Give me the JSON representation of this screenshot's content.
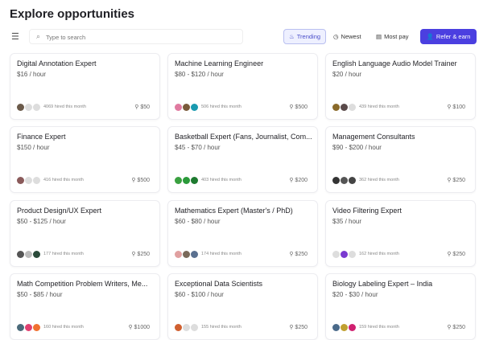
{
  "header": {
    "title": "Explore opportunities"
  },
  "toolbar": {
    "search_placeholder": "Type to search",
    "trending": "Trending",
    "newest": "Newest",
    "most_pay": "Most pay",
    "refer": "Refer & earn",
    "accent": "#4b3fe0"
  },
  "cards": [
    {
      "title": "Digital Annotation Expert",
      "price": "$16 / hour",
      "hired": "4069 hired this month",
      "bonus": "$50",
      "avatars": [
        "#6b5a4a",
        "#ddd",
        "#ddd"
      ]
    },
    {
      "title": "Machine Learning Engineer",
      "price": "$80 - $120 / hour",
      "hired": "506 hired this month",
      "bonus": "$500",
      "avatars": [
        "#e07aa0",
        "#7a5a3a",
        "#1a9ab0"
      ]
    },
    {
      "title": "English Language Audio Model Trainer",
      "price": "$20 / hour",
      "hired": "439 hired this month",
      "bonus": "$100",
      "avatars": [
        "#8a6a2a",
        "#5a4a4a",
        "#ddd"
      ]
    },
    {
      "title": "Finance Expert",
      "price": "$150 / hour",
      "hired": "416 hired this month",
      "bonus": "$500",
      "avatars": [
        "#8a5a5a",
        "#ddd",
        "#ddd"
      ]
    },
    {
      "title": "Basketball Expert (Fans, Journalist, Com...",
      "price": "$45 - $70 / hour",
      "hired": "403 hired this month",
      "bonus": "$200",
      "avatars": [
        "#3aa040",
        "#2a9a3a",
        "#1e7a30"
      ]
    },
    {
      "title": "Management Consultants",
      "price": "$90 - $200 / hour",
      "hired": "362 hired this month",
      "bonus": "$250",
      "avatars": [
        "#333",
        "#555",
        "#444"
      ]
    },
    {
      "title": "Product Design/UX Expert",
      "price": "$50 - $125 / hour",
      "hired": "177 hired this month",
      "bonus": "$250",
      "avatars": [
        "#555",
        "#bbb",
        "#2a4a3a"
      ]
    },
    {
      "title": "Mathematics Expert (Master's / PhD)",
      "price": "$60 - $80 / hour",
      "hired": "174 hired this month",
      "bonus": "$250",
      "avatars": [
        "#e0a0a0",
        "#7a6a5a",
        "#5a7090"
      ]
    },
    {
      "title": "Video Filtering Expert",
      "price": "$35 / hour",
      "hired": "162 hired this month",
      "bonus": "$250",
      "avatars": [
        "#ddd",
        "#7a3ad0",
        "#ddd"
      ]
    },
    {
      "title": "Math Competition Problem Writers, Me...",
      "price": "$50 - $85 / hour",
      "hired": "160 hired this month",
      "bonus": "$1000",
      "avatars": [
        "#4a6a7a",
        "#e04070",
        "#f07030"
      ]
    },
    {
      "title": "Exceptional Data Scientists",
      "price": "$60 - $100 / hour",
      "hired": "155 hired this month",
      "bonus": "$250",
      "avatars": [
        "#d06030",
        "#ddd",
        "#ddd"
      ]
    },
    {
      "title": "Biology Labeling Expert – India",
      "price": "$20 - $30 / hour",
      "hired": "159 hired this month",
      "bonus": "$250",
      "avatars": [
        "#4a6a8a",
        "#c0a030",
        "#d02070"
      ]
    }
  ]
}
